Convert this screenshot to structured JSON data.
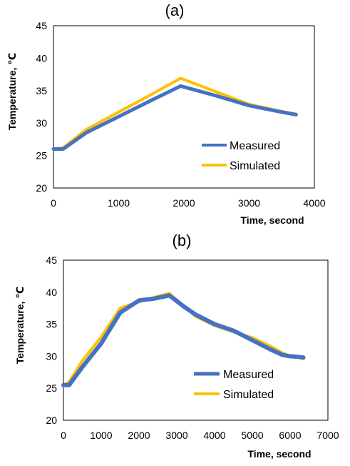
{
  "chart_data": [
    {
      "type": "line",
      "panel_label": "(a)",
      "xlabel": "Time,  second",
      "ylabel": "Temperature, ℃",
      "xlim": [
        0,
        4000
      ],
      "ylim": [
        20,
        45
      ],
      "xticks": [
        0,
        1000,
        2000,
        3000,
        4000
      ],
      "yticks": [
        20,
        25,
        30,
        35,
        40,
        45
      ],
      "grid": false,
      "legend_position": "bottom-right",
      "series": [
        {
          "name": "Measured",
          "color": "#4472C4",
          "x": [
            0,
            150,
            500,
            1000,
            1500,
            1950,
            2500,
            3000,
            3500,
            3720
          ],
          "y": [
            26.0,
            26.0,
            28.5,
            31.0,
            33.5,
            35.7,
            34.2,
            32.7,
            31.7,
            31.3
          ]
        },
        {
          "name": "Simulated",
          "color": "#FFC000",
          "x": [
            0,
            150,
            500,
            1000,
            1500,
            1950,
            2500,
            3000,
            3500,
            3720
          ],
          "y": [
            26.0,
            26.2,
            29.0,
            31.7,
            34.4,
            36.9,
            34.8,
            32.9,
            31.8,
            31.4
          ]
        }
      ]
    },
    {
      "type": "line",
      "panel_label": "(b)",
      "xlabel": "Time,  second",
      "ylabel": "Temperature, ℃",
      "xlim": [
        0,
        7000
      ],
      "ylim": [
        20,
        45
      ],
      "xticks": [
        0,
        1000,
        2000,
        3000,
        4000,
        5000,
        6000,
        7000
      ],
      "yticks": [
        20,
        25,
        30,
        35,
        40,
        45
      ],
      "grid": false,
      "legend_position": "bottom-right",
      "series": [
        {
          "name": "Measured",
          "color": "#4472C4",
          "x": [
            0,
            150,
            500,
            1000,
            1500,
            2000,
            2400,
            2800,
            3200,
            3500,
            4000,
            4500,
            5000,
            5500,
            5800,
            6000,
            6200,
            6350
          ],
          "y": [
            25.5,
            25.5,
            28.3,
            32.0,
            36.8,
            38.7,
            39.0,
            39.5,
            37.7,
            36.5,
            35.0,
            34.0,
            32.5,
            31.0,
            30.2,
            30.0,
            29.9,
            29.8
          ]
        },
        {
          "name": "Simulated",
          "color": "#FFC000",
          "x": [
            0,
            150,
            500,
            1000,
            1500,
            2000,
            2400,
            2800,
            3200,
            3500,
            4000,
            4500,
            5000,
            5500,
            5800,
            6000,
            6200,
            6350
          ],
          "y": [
            25.5,
            26.0,
            29.3,
            33.0,
            37.5,
            38.5,
            39.2,
            39.8,
            37.8,
            36.2,
            34.8,
            33.8,
            32.9,
            31.5,
            30.5,
            30.0,
            29.9,
            29.6
          ]
        }
      ]
    }
  ]
}
